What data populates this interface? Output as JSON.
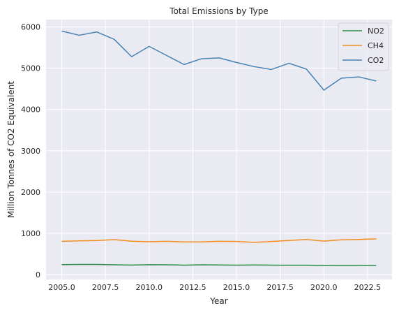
{
  "chart_data": {
    "type": "line",
    "title": "Total Emissions by Type",
    "xlabel": "Year",
    "ylabel": "Million Tonnes of CO2 Equivalent",
    "xlim": [
      2004.1,
      2023.9
    ],
    "ylim": [
      -120,
      6180
    ],
    "xticks": [
      2005.0,
      2007.5,
      2010.0,
      2012.5,
      2015.0,
      2017.5,
      2020.0,
      2022.5
    ],
    "xtick_labels": [
      "2005.0",
      "2007.5",
      "2010.0",
      "2012.5",
      "2015.0",
      "2017.5",
      "2020.0",
      "2022.5"
    ],
    "yticks": [
      0,
      1000,
      2000,
      3000,
      4000,
      5000,
      6000
    ],
    "ytick_labels": [
      "0",
      "1000",
      "2000",
      "3000",
      "4000",
      "5000",
      "6000"
    ],
    "grid": true,
    "legend_position": "top-right",
    "x": [
      2005,
      2006,
      2007,
      2008,
      2009,
      2010,
      2011,
      2012,
      2013,
      2014,
      2015,
      2016,
      2017,
      2018,
      2019,
      2020,
      2021,
      2022,
      2023
    ],
    "series": [
      {
        "name": "NO2",
        "color": "#2e8b4a",
        "values": [
          240,
          245,
          245,
          235,
          230,
          238,
          235,
          228,
          235,
          232,
          228,
          232,
          228,
          225,
          225,
          218,
          220,
          222,
          218
        ]
      },
      {
        "name": "CH4",
        "color": "#f28e1c",
        "values": [
          805,
          815,
          825,
          845,
          808,
          795,
          805,
          790,
          790,
          805,
          800,
          780,
          800,
          825,
          850,
          810,
          840,
          850,
          865
        ]
      },
      {
        "name": "CO2",
        "color": "#4682b4",
        "values": [
          5900,
          5800,
          5880,
          5700,
          5280,
          5530,
          5310,
          5090,
          5230,
          5250,
          5140,
          5040,
          4970,
          5120,
          4980,
          4470,
          4760,
          4790,
          4690
        ]
      }
    ]
  }
}
